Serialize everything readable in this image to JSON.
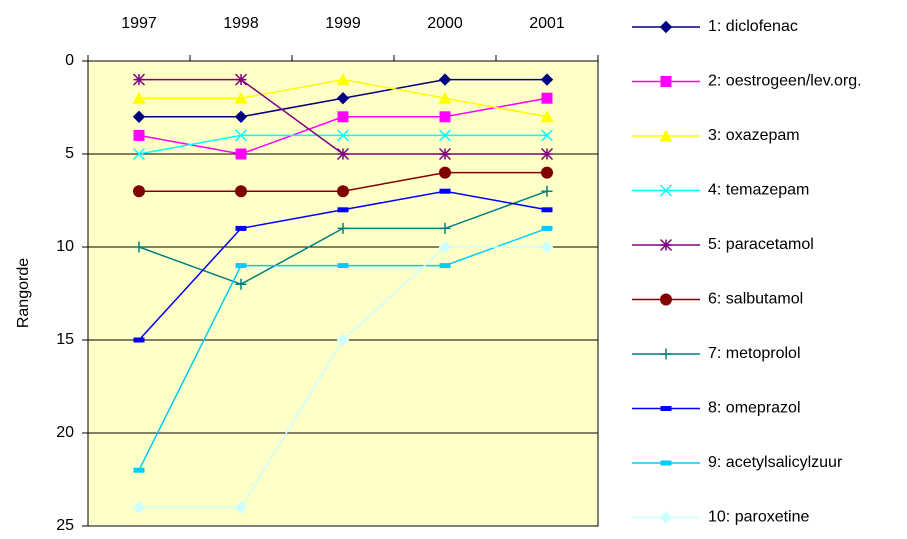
{
  "chart_data": {
    "type": "line",
    "y_label": "Rangorde",
    "categories": [
      "1997",
      "1998",
      "1999",
      "2000",
      "2001"
    ],
    "ylim": [
      0,
      25
    ],
    "yticks": [
      0,
      5,
      10,
      15,
      20,
      25
    ],
    "y_inverted": true,
    "grid": true,
    "plot_background": "#FFFFC8",
    "series": [
      {
        "name": "1: diclofenac",
        "color": "#000080",
        "marker": "diamond",
        "values": [
          3,
          3,
          2,
          1,
          1
        ]
      },
      {
        "name": "2: oestrogeen/lev.org.",
        "color": "#FF00FF",
        "marker": "square",
        "values": [
          4,
          5,
          3,
          3,
          2
        ]
      },
      {
        "name": "3: oxazepam",
        "color": "#FFFF00",
        "marker": "triangle",
        "values": [
          2,
          2,
          1,
          2,
          3
        ]
      },
      {
        "name": "4: temazepam",
        "color": "#00FFFF",
        "marker": "x",
        "values": [
          5,
          4,
          4,
          4,
          4
        ]
      },
      {
        "name": "5: paracetamol",
        "color": "#800080",
        "marker": "star",
        "values": [
          1,
          1,
          5,
          5,
          5
        ]
      },
      {
        "name": "6: salbutamol",
        "color": "#800000",
        "marker": "circle",
        "values": [
          7,
          7,
          7,
          6,
          6
        ]
      },
      {
        "name": "7: metoprolol",
        "color": "#008080",
        "marker": "plus",
        "values": [
          10,
          12,
          9,
          9,
          7
        ]
      },
      {
        "name": "8: omeprazol",
        "color": "#0000FF",
        "marker": "dash",
        "values": [
          15,
          9,
          8,
          7,
          8
        ]
      },
      {
        "name": "9: acetylsalicylzuur",
        "color": "#00CCFF",
        "marker": "dash",
        "values": [
          22,
          11,
          11,
          11,
          9
        ]
      },
      {
        "name": "10: paroxetine",
        "color": "#CCFFFF",
        "marker": "diamond",
        "values": [
          24,
          24,
          15,
          10,
          10
        ]
      }
    ]
  }
}
